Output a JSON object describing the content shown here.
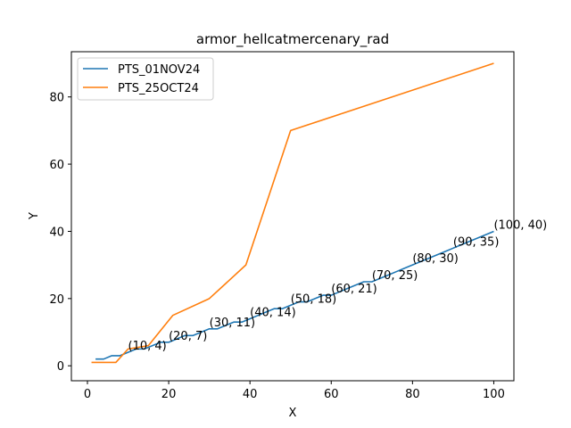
{
  "chart_data": {
    "type": "line",
    "title": "armor_hellcatmercenary_rad",
    "xlabel": "X",
    "ylabel": "Y",
    "xlim": [
      -3.95,
      104.95
    ],
    "ylim": [
      -4.45,
      93.45
    ],
    "xticks": [
      0,
      20,
      40,
      60,
      80,
      100
    ],
    "yticks": [
      0,
      20,
      40,
      60,
      80
    ],
    "grid": false,
    "legend_position": "top-left",
    "series": [
      {
        "name": "PTS_01NOV24",
        "color": "#1f77b4",
        "x": [
          2,
          4,
          6,
          8,
          10,
          12,
          14,
          16,
          18,
          20,
          22,
          24,
          26,
          28,
          30,
          32,
          34,
          36,
          38,
          40,
          42,
          44,
          46,
          48,
          50,
          52,
          54,
          56,
          58,
          60,
          62,
          64,
          66,
          68,
          70,
          72,
          74,
          76,
          78,
          80,
          82,
          84,
          86,
          88,
          90,
          92,
          94,
          96,
          98,
          100
        ],
        "y": [
          2,
          2,
          3,
          3,
          4,
          5,
          5,
          6,
          7,
          7,
          8,
          9,
          9,
          10,
          11,
          11,
          12,
          13,
          13,
          14,
          15,
          16,
          17,
          17,
          18,
          19,
          19,
          20,
          21,
          21,
          22,
          23,
          24,
          25,
          25,
          26,
          27,
          28,
          29,
          30,
          31,
          32,
          33,
          34,
          35,
          36,
          37,
          38,
          39,
          40
        ]
      },
      {
        "name": "PTS_25OCT24",
        "color": "#ff7f0e",
        "x": [
          1,
          7,
          10,
          15,
          21,
          30,
          39,
          50,
          100
        ],
        "y": [
          1,
          1,
          5,
          6,
          15,
          20,
          30,
          70,
          90
        ]
      }
    ],
    "annotations": [
      {
        "x": 10,
        "y": 4,
        "text": "(10, 4)"
      },
      {
        "x": 20,
        "y": 7,
        "text": "(20, 7)"
      },
      {
        "x": 30,
        "y": 11,
        "text": "(30, 11)"
      },
      {
        "x": 40,
        "y": 14,
        "text": "(40, 14)"
      },
      {
        "x": 50,
        "y": 18,
        "text": "(50, 18)"
      },
      {
        "x": 60,
        "y": 21,
        "text": "(60, 21)"
      },
      {
        "x": 70,
        "y": 25,
        "text": "(70, 25)"
      },
      {
        "x": 80,
        "y": 30,
        "text": "(80, 30)"
      },
      {
        "x": 90,
        "y": 35,
        "text": "(90, 35)"
      },
      {
        "x": 100,
        "y": 40,
        "text": "(100, 40)"
      }
    ]
  }
}
